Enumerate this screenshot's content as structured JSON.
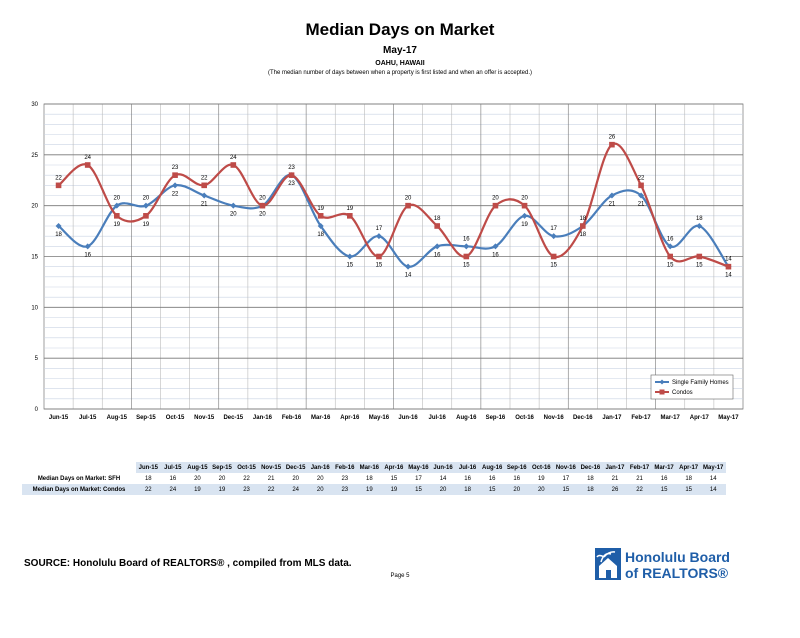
{
  "title": "Median Days on Market",
  "subtitle": "May-17",
  "region": "OAHU, HAWAII",
  "note": "(The median number of days between when a property is first listed and when an offer is accepted.)",
  "source": "SOURCE:  Honolulu Board of REALTORS® , compiled from MLS data.",
  "page": "Page 5",
  "logo": {
    "line1": "Honolulu Board",
    "line2": "of REALTORS®"
  },
  "colors": {
    "sfh": "#4a7ebb",
    "condo": "#be4b48"
  },
  "table": {
    "sfh_label": "Median Days on Market: SFH",
    "condo_label": "Median Days on Market: Condos"
  },
  "chart_data": {
    "type": "line",
    "categories": [
      "Jun-15",
      "Jul-15",
      "Aug-15",
      "Sep-15",
      "Oct-15",
      "Nov-15",
      "Dec-15",
      "Jan-16",
      "Feb-16",
      "Mar-16",
      "Apr-16",
      "May-16",
      "Jun-16",
      "Jul-16",
      "Aug-16",
      "Sep-16",
      "Oct-16",
      "Nov-16",
      "Dec-16",
      "Jan-17",
      "Feb-17",
      "Mar-17",
      "Apr-17",
      "May-17"
    ],
    "series": [
      {
        "name": "Single Family Homes",
        "values": [
          18,
          16,
          20,
          20,
          22,
          21,
          20,
          20,
          23,
          18,
          15,
          17,
          14,
          16,
          16,
          16,
          19,
          17,
          18,
          21,
          21,
          16,
          18,
          14
        ]
      },
      {
        "name": "Condos",
        "values": [
          22,
          24,
          19,
          19,
          23,
          22,
          24,
          20,
          23,
          19,
          19,
          15,
          20,
          18,
          15,
          20,
          20,
          15,
          18,
          26,
          22,
          15,
          15,
          14
        ]
      }
    ],
    "ylim": [
      0,
      30
    ],
    "yticks": [
      0,
      5,
      10,
      15,
      20,
      25,
      30
    ],
    "grid": true,
    "legend": "bottom-right"
  }
}
